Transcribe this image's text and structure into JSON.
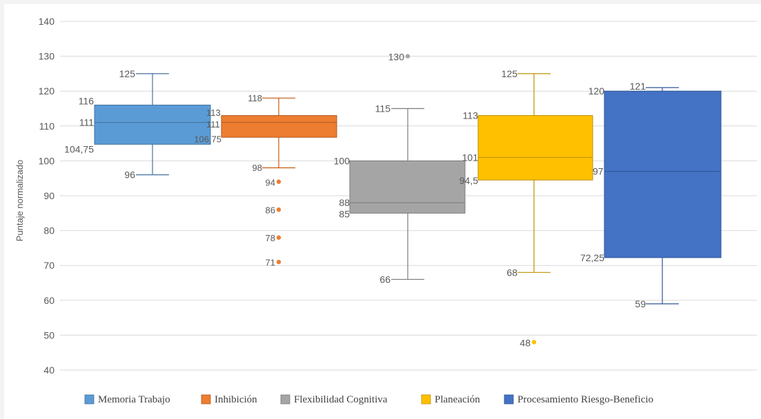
{
  "chart_data": {
    "type": "boxplot",
    "title": "",
    "xlabel": "",
    "ylabel": "Puntaje normalizado",
    "ylim": [
      40,
      140
    ],
    "yticks": [
      "40",
      "50",
      "60",
      "70",
      "80",
      "90",
      "100",
      "110",
      "120",
      "130",
      "140"
    ],
    "grid": true,
    "legend_position": "bottom",
    "series": [
      {
        "name": "Memoria Trabajo",
        "color": "#5b9bd5",
        "border": "#41719c",
        "whisker_color": "#41719c",
        "min": 96,
        "q1": 104.75,
        "median": 111,
        "q3": 116,
        "max": 125,
        "outliers": [],
        "labels": {
          "min": "96",
          "q1": "104,75",
          "median": "111",
          "q3": "116",
          "max": "125"
        }
      },
      {
        "name": "Inhibición",
        "color": "#ed7d31",
        "border": "#ae5a21",
        "whisker_color": "#c55a11",
        "min": 98,
        "q1": 106.75,
        "median": 111,
        "q3": 113,
        "max": 118,
        "outliers": [
          94,
          86,
          78,
          71
        ],
        "outlier_labels": [
          "94",
          "86",
          "78",
          "71"
        ],
        "labels": {
          "min": "98",
          "q1": "106,75",
          "median": "111",
          "q3": "113",
          "max": "118"
        }
      },
      {
        "name": "Flexibilidad Cognitiva",
        "color": "#a5a5a5",
        "border": "#7b7b7b",
        "whisker_color": "#7b7b7b",
        "min": 66,
        "q1": 85,
        "median": 88,
        "q3": 100,
        "max": 115,
        "outliers": [
          130
        ],
        "outlier_labels": [
          "130"
        ],
        "labels": {
          "min": "66",
          "q1": "85",
          "median": "88",
          "q3": "100",
          "max": "115"
        }
      },
      {
        "name": "Planeación",
        "color": "#ffc000",
        "border": "#bc8c00",
        "whisker_color": "#bf9000",
        "min": 68,
        "q1": 94.5,
        "median": 101,
        "q3": 113,
        "max": 125,
        "outliers": [
          48
        ],
        "outlier_labels": [
          "48"
        ],
        "labels": {
          "min": "68",
          "q1": "94,5",
          "median": "101",
          "q3": "113",
          "max": "125"
        }
      },
      {
        "name": "Procesamiento Riesgo-Beneficio",
        "color": "#4472c4",
        "border": "#2f5597",
        "whisker_color": "#2f5597",
        "min": 59,
        "q1": 72.25,
        "median": 97,
        "q3": 120,
        "max": 121,
        "outliers": [],
        "labels": {
          "min": "59",
          "q1": "72,25",
          "median": "97",
          "q3": "120",
          "max": "121"
        }
      }
    ]
  }
}
